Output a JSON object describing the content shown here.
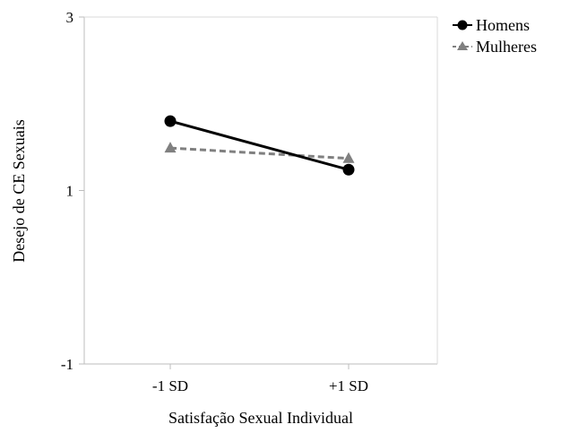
{
  "chart_data": {
    "type": "line",
    "title": "",
    "xlabel": "Satisfação Sexual Individual",
    "ylabel": "Desejo de CE Sexuais",
    "categories": [
      "-1 SD",
      "+1 SD"
    ],
    "ylim": [
      -1,
      3
    ],
    "yticks": [
      -1,
      1,
      3
    ],
    "grid": false,
    "legend_position": "top-right, outside plot",
    "series": [
      {
        "name": "Homens",
        "values": [
          1.8,
          1.24
        ],
        "marker": "circle",
        "line_style": "solid",
        "color": "#000000"
      },
      {
        "name": "Mulheres",
        "values": [
          1.49,
          1.37
        ],
        "marker": "triangle",
        "line_style": "dashed",
        "color": "#808080"
      }
    ]
  }
}
